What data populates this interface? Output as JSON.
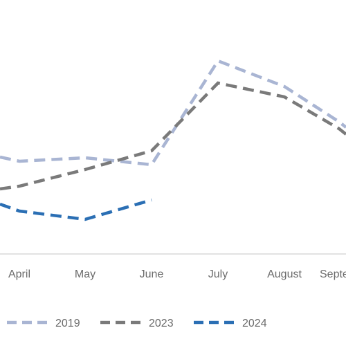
{
  "chart_data": {
    "type": "line",
    "categories": [
      "April",
      "May",
      "June",
      "July",
      "August",
      "Sept"
    ],
    "category_labels_shown": [
      "April",
      "May",
      "June",
      "July",
      "August",
      "Septe"
    ],
    "series": [
      {
        "name": "2019",
        "color": "#a9b5d3",
        "values": [
          233,
          228,
          238,
          88,
          125,
          176
        ]
      },
      {
        "name": "2023",
        "color": "#7a7a7a",
        "values": [
          269,
          245,
          218,
          120,
          140,
          186
        ]
      },
      {
        "name": "2024",
        "color": "#2b6fb4",
        "values": [
          305,
          317,
          289,
          null,
          null,
          null
        ]
      }
    ],
    "y_inverted_note": "",
    "grid": false,
    "legend": "bottom"
  }
}
